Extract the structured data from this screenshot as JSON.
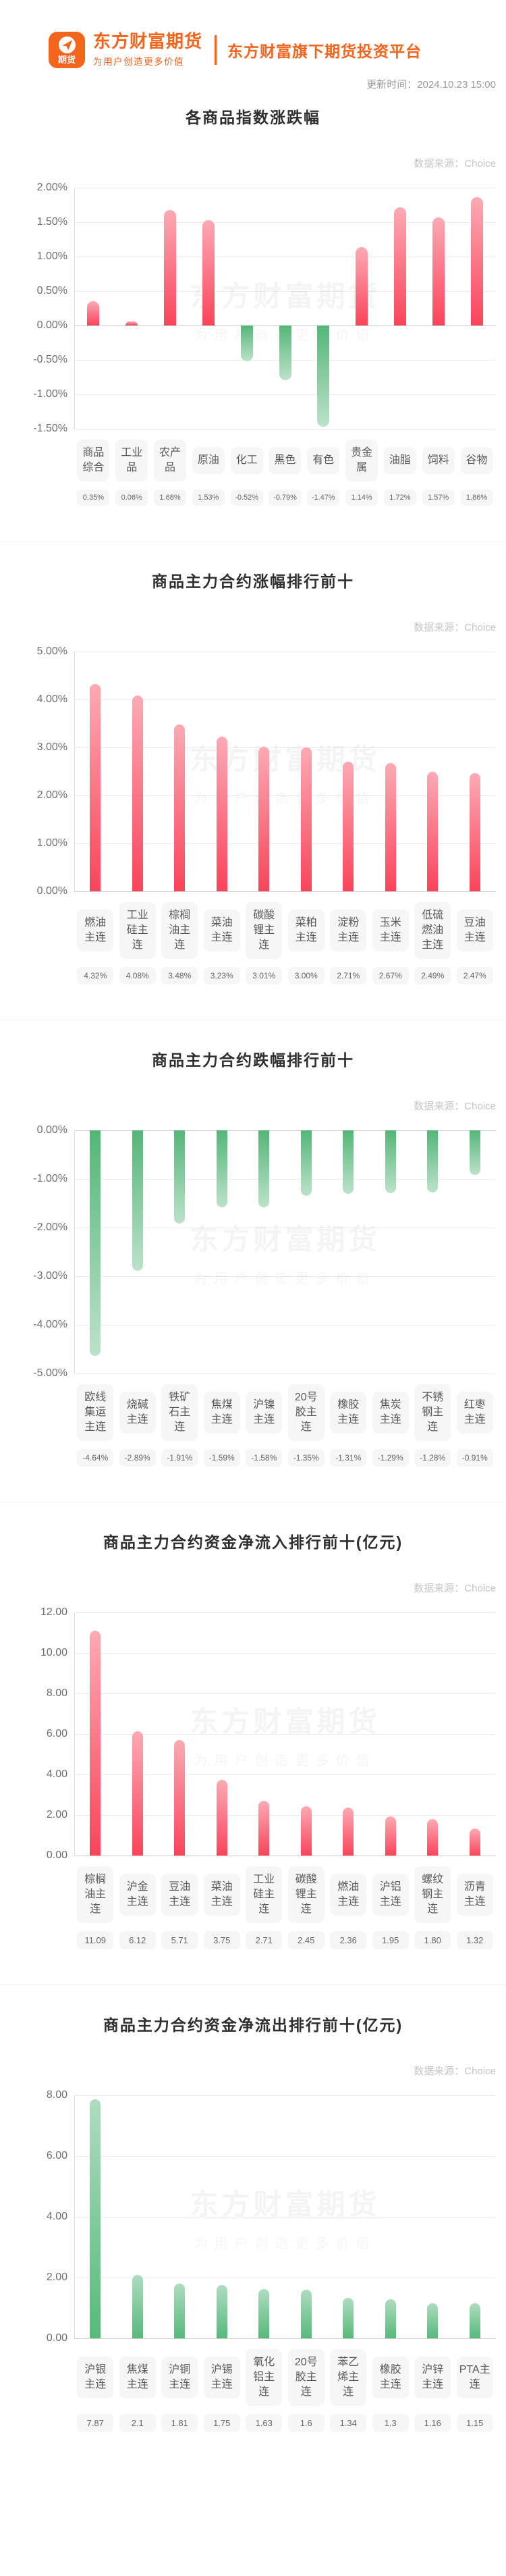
{
  "header": {
    "logo_badge_text": "期货",
    "brand_name": "东方财富期货",
    "brand_slogan": "为用户创造更多价值",
    "tagline": "东方财富旗下期货投资平台",
    "update_time": "更新时间：2024.10.23 15:00"
  },
  "watermark": {
    "line1": "东方财富期货",
    "line2": "为用户创造更多价值"
  },
  "colors": {
    "accent_orange": "#f3641d",
    "bar_red": "#f9445a",
    "bar_red_light": "#fcaab4",
    "bar_green": "#57b97a",
    "bar_green_light": "#bce2ca"
  },
  "chart_data": [
    {
      "type": "bar",
      "title": "各商品指数涨跌幅",
      "source": "数据来源：Choice",
      "categories": [
        "商品综合",
        "工业品",
        "农产品",
        "原油",
        "化工",
        "黑色",
        "有色",
        "贵金属",
        "油脂",
        "饲料",
        "谷物"
      ],
      "values": [
        0.35,
        0.06,
        1.68,
        1.53,
        -0.52,
        -0.79,
        -1.47,
        1.14,
        1.72,
        1.57,
        1.86
      ],
      "value_labels": [
        "0.35%",
        "0.06%",
        "1.68%",
        "1.53%",
        "-0.52%",
        "-0.79%",
        "-1.47%",
        "1.14%",
        "1.72%",
        "1.57%",
        "1.86%"
      ],
      "ylim": [
        -1.5,
        2.0
      ],
      "ytick_values": [
        2.0,
        1.5,
        1.0,
        0.5,
        0.0,
        -0.5,
        -1.0,
        -1.5
      ],
      "ytick_labels": [
        "2.00%",
        "1.50%",
        "1.00%",
        "0.50%",
        "0.00%",
        "-0.50%",
        "-1.00%",
        "-1.50%"
      ],
      "palette": "sign",
      "grid": true,
      "legend": false
    },
    {
      "type": "bar",
      "title": "商品主力合约涨幅排行前十",
      "source": "数据来源：Choice",
      "categories": [
        "燃油主连",
        "工业硅主连",
        "棕榈油主连",
        "菜油主连",
        "碳酸锂主连",
        "菜粕主连",
        "淀粉主连",
        "玉米主连",
        "低硫燃油主连",
        "豆油主连"
      ],
      "values": [
        4.32,
        4.08,
        3.48,
        3.23,
        3.01,
        3.0,
        2.71,
        2.67,
        2.49,
        2.47
      ],
      "value_labels": [
        "4.32%",
        "4.08%",
        "3.48%",
        "3.23%",
        "3.01%",
        "3.00%",
        "2.71%",
        "2.67%",
        "2.49%",
        "2.47%"
      ],
      "ylim": [
        0,
        5
      ],
      "ytick_values": [
        5,
        4,
        3,
        2,
        1,
        0
      ],
      "ytick_labels": [
        "5.00%",
        "4.00%",
        "3.00%",
        "2.00%",
        "1.00%",
        "0.00%"
      ],
      "palette": "red-up",
      "grid": true,
      "legend": false
    },
    {
      "type": "bar",
      "title": "商品主力合约跌幅排行前十",
      "source": "数据来源：Choice",
      "categories": [
        "欧线集运主连",
        "烧碱主连",
        "铁矿石主连",
        "焦煤主连",
        "沪镍主连",
        "20号胶主连",
        "橡胶主连",
        "焦炭主连",
        "不锈钢主连",
        "红枣主连"
      ],
      "values": [
        -4.64,
        -2.89,
        -1.91,
        -1.59,
        -1.58,
        -1.35,
        -1.31,
        -1.29,
        -1.28,
        -0.91
      ],
      "value_labels": [
        "-4.64%",
        "-2.89%",
        "-1.91%",
        "-1.59%",
        "-1.58%",
        "-1.35%",
        "-1.31%",
        "-1.29%",
        "-1.28%",
        "-0.91%"
      ],
      "ylim": [
        -5,
        0
      ],
      "ytick_values": [
        0,
        -1,
        -2,
        -3,
        -4,
        -5
      ],
      "ytick_labels": [
        "0.00%",
        "-1.00%",
        "-2.00%",
        "-3.00%",
        "-4.00%",
        "-5.00%"
      ],
      "palette": "green-down",
      "grid": true,
      "legend": false
    },
    {
      "type": "bar",
      "title": "商品主力合约资金净流入排行前十(亿元)",
      "source": "数据来源：Choice",
      "categories": [
        "棕榈油主连",
        "沪金主连",
        "豆油主连",
        "菜油主连",
        "工业硅主连",
        "碳酸锂主连",
        "燃油主连",
        "沪铝主连",
        "螺纹钢主连",
        "沥青主连"
      ],
      "values": [
        11.09,
        6.12,
        5.71,
        3.75,
        2.71,
        2.45,
        2.36,
        1.95,
        1.8,
        1.32
      ],
      "value_labels": [
        "11.09",
        "6.12",
        "5.71",
        "3.75",
        "2.71",
        "2.45",
        "2.36",
        "1.95",
        "1.80",
        "1.32"
      ],
      "ylim": [
        0,
        12
      ],
      "ytick_values": [
        12,
        10,
        8,
        6,
        4,
        2,
        0
      ],
      "ytick_labels": [
        "12.00",
        "10.00",
        "8.00",
        "6.00",
        "4.00",
        "2.00",
        "0.00"
      ],
      "palette": "red-up",
      "grid": true,
      "legend": false
    },
    {
      "type": "bar",
      "title": "商品主力合约资金净流出排行前十(亿元)",
      "source": "数据来源：Choice",
      "categories": [
        "沪银主连",
        "焦煤主连",
        "沪铜主连",
        "沪锡主连",
        "氧化铝主连",
        "20号胶主连",
        "苯乙烯主连",
        "橡胶主连",
        "沪锌主连",
        "PTA主连"
      ],
      "values": [
        7.87,
        2.1,
        1.81,
        1.75,
        1.63,
        1.6,
        1.34,
        1.3,
        1.16,
        1.15
      ],
      "value_labels": [
        "7.87",
        "2.1",
        "1.81",
        "1.75",
        "1.63",
        "1.6",
        "1.34",
        "1.3",
        "1.16",
        "1.15"
      ],
      "ylim": [
        0,
        8
      ],
      "ytick_values": [
        8,
        6,
        4,
        2,
        0
      ],
      "ytick_labels": [
        "8.00",
        "6.00",
        "4.00",
        "2.00",
        "0.00"
      ],
      "palette": "green-up",
      "grid": true,
      "legend": false
    }
  ]
}
